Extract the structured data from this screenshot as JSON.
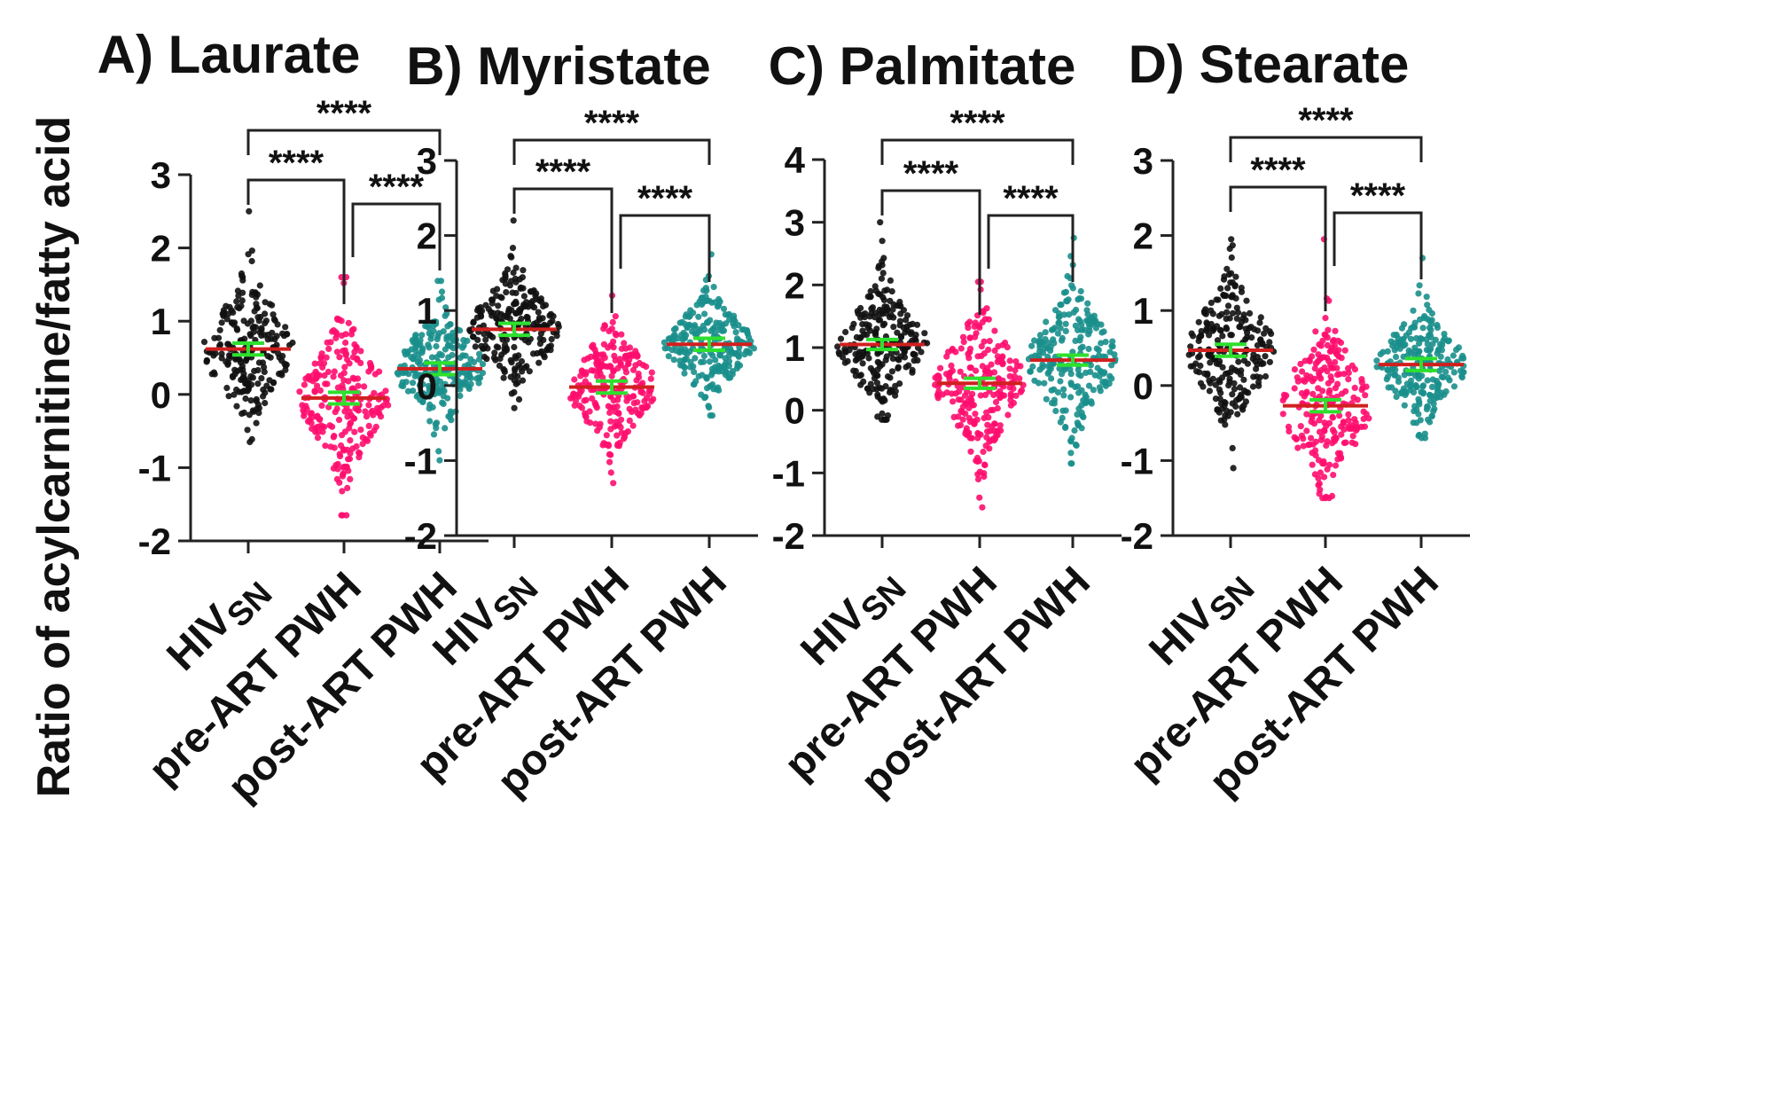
{
  "y_axis_label": "Ratio of acylcarnitine/fatty acid",
  "groups": [
    {
      "main": "HIV",
      "sub": "SN"
    },
    {
      "main": "pre-ART PWH",
      "sub": ""
    },
    {
      "main": "post-ART PWH",
      "sub": ""
    }
  ],
  "significance": "****",
  "colors": {
    "HIV_SN": "#111111",
    "pre-ART PWH": "#ff0d6e",
    "post-ART PWH": "#1a8f8c",
    "median_line": "#d0201f",
    "error_bar": "#2ee02e",
    "axis": "#222222"
  },
  "chart_data": [
    {
      "type": "scatter",
      "title": "A) Laurate",
      "ylabel": "Ratio of acylcarnitine/fatty acid",
      "ylim": [
        -2,
        3
      ],
      "yticks": [
        "-2",
        "-1",
        "0",
        "1",
        "2",
        "3"
      ],
      "categories": [
        "HIVSN",
        "pre-ART PWH",
        "post-ART PWH"
      ],
      "series": [
        {
          "name": "HIVSN",
          "center": 0.62,
          "min": -0.65,
          "max": 2.5
        },
        {
          "name": "pre-ART PWH",
          "center": -0.05,
          "min": -1.65,
          "max": 1.6
        },
        {
          "name": "post-ART PWH",
          "center": 0.35,
          "min": -0.9,
          "max": 1.55
        }
      ],
      "comparisons": [
        {
          "from": "HIVSN",
          "to": "post-ART PWH",
          "label": "****"
        },
        {
          "from": "HIVSN",
          "to": "pre-ART PWH",
          "label": "****"
        },
        {
          "from": "pre-ART PWH",
          "to": "post-ART PWH",
          "label": "****"
        }
      ]
    },
    {
      "type": "scatter",
      "title": "B) Myristate",
      "ylabel": "",
      "ylim": [
        -2,
        3
      ],
      "yticks": [
        "-2",
        "-1",
        "0",
        "1",
        "2",
        "3"
      ],
      "categories": [
        "HIVSN",
        "pre-ART PWH",
        "post-ART PWH"
      ],
      "series": [
        {
          "name": "HIVSN",
          "center": 0.75,
          "min": -0.3,
          "max": 2.2
        },
        {
          "name": "pre-ART PWH",
          "center": -0.02,
          "min": -1.3,
          "max": 1.2
        },
        {
          "name": "post-ART PWH",
          "center": 0.55,
          "min": -0.4,
          "max": 1.75
        }
      ],
      "comparisons": [
        {
          "from": "HIVSN",
          "to": "post-ART PWH",
          "label": "****"
        },
        {
          "from": "HIVSN",
          "to": "pre-ART PWH",
          "label": "****"
        },
        {
          "from": "pre-ART PWH",
          "to": "post-ART PWH",
          "label": "****"
        }
      ]
    },
    {
      "type": "scatter",
      "title": "C) Palmitate",
      "ylabel": "",
      "ylim": [
        -2,
        4
      ],
      "yticks": [
        "-2",
        "-1",
        "0",
        "1",
        "2",
        "3",
        "4"
      ],
      "categories": [
        "HIVSN",
        "pre-ART PWH",
        "post-ART PWH"
      ],
      "series": [
        {
          "name": "HIVSN",
          "center": 1.05,
          "min": -0.15,
          "max": 3.0
        },
        {
          "name": "pre-ART PWH",
          "center": 0.43,
          "min": -1.55,
          "max": 2.05
        },
        {
          "name": "post-ART PWH",
          "center": 0.8,
          "min": -0.85,
          "max": 2.75
        }
      ],
      "comparisons": [
        {
          "from": "HIVSN",
          "to": "post-ART PWH",
          "label": "****"
        },
        {
          "from": "HIVSN",
          "to": "pre-ART PWH",
          "label": "****"
        },
        {
          "from": "pre-ART PWH",
          "to": "post-ART PWH",
          "label": "****"
        }
      ]
    },
    {
      "type": "scatter",
      "title": "D) Stearate",
      "ylabel": "",
      "ylim": [
        -2,
        3
      ],
      "yticks": [
        "-2",
        "-1",
        "0",
        "1",
        "2",
        "3"
      ],
      "categories": [
        "HIVSN",
        "pre-ART PWH",
        "post-ART PWH"
      ],
      "series": [
        {
          "name": "HIVSN",
          "center": 0.47,
          "min": -1.1,
          "max": 1.95
        },
        {
          "name": "pre-ART PWH",
          "center": -0.27,
          "min": -1.5,
          "max": 1.95
        },
        {
          "name": "post-ART PWH",
          "center": 0.28,
          "min": -0.7,
          "max": 1.7
        }
      ],
      "comparisons": [
        {
          "from": "HIVSN",
          "to": "post-ART PWH",
          "label": "****"
        },
        {
          "from": "HIVSN",
          "to": "pre-ART PWH",
          "label": "****"
        },
        {
          "from": "pre-ART PWH",
          "to": "post-ART PWH",
          "label": "****"
        }
      ]
    }
  ]
}
